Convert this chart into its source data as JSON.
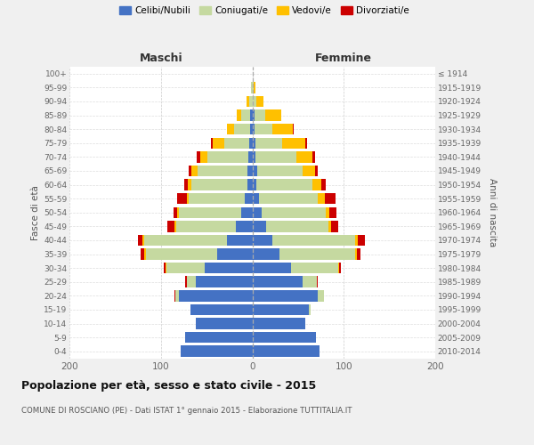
{
  "age_groups": [
    "0-4",
    "5-9",
    "10-14",
    "15-19",
    "20-24",
    "25-29",
    "30-34",
    "35-39",
    "40-44",
    "45-49",
    "50-54",
    "55-59",
    "60-64",
    "65-69",
    "70-74",
    "75-79",
    "80-84",
    "85-89",
    "90-94",
    "95-99",
    "100+"
  ],
  "birth_years": [
    "2010-2014",
    "2005-2009",
    "2000-2004",
    "1995-1999",
    "1990-1994",
    "1985-1989",
    "1980-1984",
    "1975-1979",
    "1970-1974",
    "1965-1969",
    "1960-1964",
    "1955-1959",
    "1950-1954",
    "1945-1949",
    "1940-1944",
    "1935-1939",
    "1930-1934",
    "1925-1929",
    "1920-1924",
    "1915-1919",
    "≤ 1914"
  ],
  "males_celibi": [
    78,
    73,
    62,
    68,
    80,
    62,
    52,
    38,
    28,
    18,
    12,
    8,
    5,
    5,
    4,
    3,
    2,
    2,
    0,
    0,
    0
  ],
  "males_coniugati": [
    0,
    0,
    0,
    0,
    4,
    10,
    42,
    78,
    90,
    65,
    68,
    62,
    62,
    55,
    45,
    28,
    18,
    10,
    3,
    1,
    0
  ],
  "males_vedovi": [
    0,
    0,
    0,
    0,
    0,
    0,
    1,
    2,
    2,
    2,
    2,
    2,
    4,
    7,
    8,
    12,
    8,
    5,
    3,
    0,
    0
  ],
  "males_divorziati": [
    0,
    0,
    0,
    0,
    1,
    1,
    2,
    4,
    5,
    8,
    4,
    10,
    3,
    3,
    4,
    2,
    0,
    0,
    0,
    0,
    0
  ],
  "females_nubili": [
    73,
    70,
    58,
    62,
    72,
    55,
    42,
    30,
    22,
    15,
    10,
    7,
    4,
    5,
    3,
    3,
    2,
    2,
    0,
    0,
    0
  ],
  "females_coniugate": [
    0,
    0,
    0,
    2,
    6,
    16,
    52,
    82,
    90,
    68,
    70,
    65,
    62,
    50,
    45,
    30,
    20,
    12,
    4,
    1,
    0
  ],
  "females_vedove": [
    0,
    0,
    0,
    0,
    0,
    0,
    1,
    2,
    3,
    3,
    4,
    7,
    9,
    14,
    18,
    25,
    22,
    18,
    8,
    2,
    0
  ],
  "females_divorziate": [
    0,
    0,
    0,
    0,
    0,
    1,
    2,
    4,
    8,
    8,
    8,
    12,
    5,
    3,
    3,
    2,
    1,
    0,
    0,
    0,
    0
  ],
  "colors_celibi": "#4472c4",
  "colors_coniugati": "#c5d9a0",
  "colors_vedovi": "#ffc000",
  "colors_divorziati": "#cc0000",
  "xlim": 200,
  "title": "Popolazione per età, sesso e stato civile - 2015",
  "subtitle": "COMUNE DI ROSCIANO (PE) - Dati ISTAT 1° gennaio 2015 - Elaborazione TUTTITALIA.IT",
  "ylabel_left": "Fasce di età",
  "ylabel_right": "Anni di nascita",
  "header_left": "Maschi",
  "header_right": "Femmine",
  "legend_labels": [
    "Celibi/Nubili",
    "Coniugati/e",
    "Vedovi/e",
    "Divorziati/e"
  ],
  "bg_color": "#f0f0f0",
  "plot_bg": "#ffffff"
}
